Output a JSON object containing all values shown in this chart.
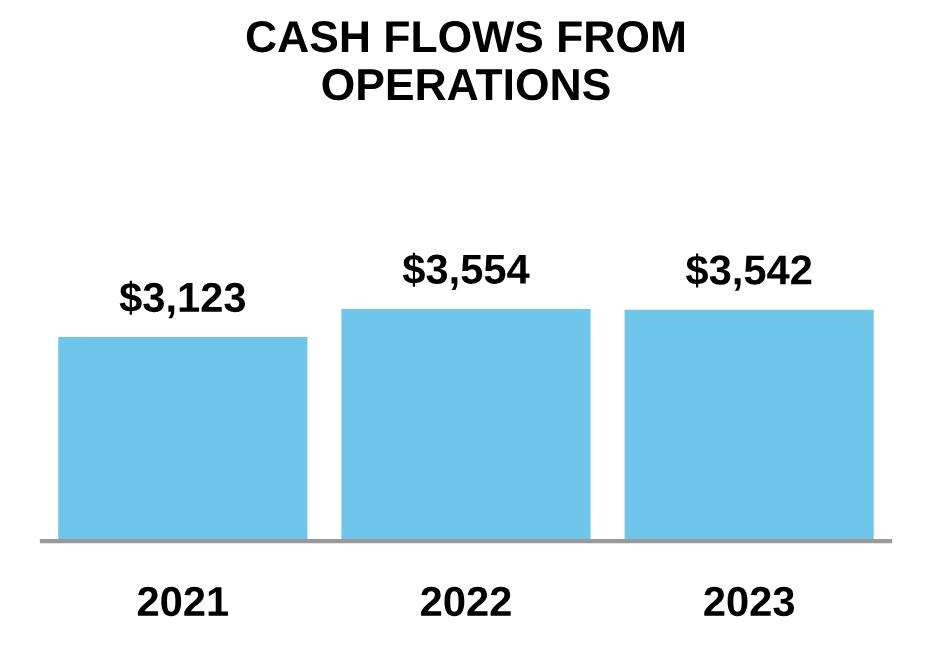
{
  "chart_data": {
    "type": "bar",
    "title": "CASH FLOWS FROM\nOPERATIONS",
    "categories": [
      "2021",
      "2022",
      "2023"
    ],
    "values": [
      3123,
      3554,
      3542
    ],
    "value_labels": [
      "$3,123",
      "$3,554",
      "$3,542"
    ],
    "color": "#6ec6ea",
    "grid": false
  }
}
